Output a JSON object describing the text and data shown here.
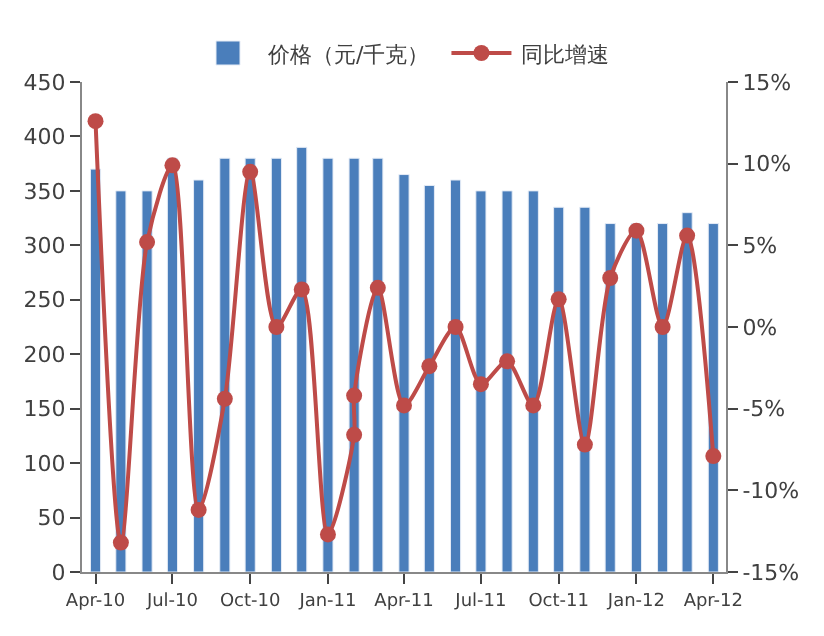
{
  "chart_data": {
    "type": "bar",
    "x": [
      "2010-04",
      "2010-05",
      "2010-06",
      "2010-07",
      "2010-08",
      "2010-09",
      "2010-10",
      "2010-11",
      "2010-12",
      "2011-01",
      "2011-02",
      "2011-03",
      "2011-04",
      "2011-05",
      "2011-06",
      "2011-07",
      "2011-08",
      "2011-09",
      "2011-10",
      "2011-11",
      "2011-12",
      "2012-01",
      "2012-02",
      "2012-03",
      "2012-04"
    ],
    "series": [
      {
        "name": "价格（元/千克）",
        "color": "#4a7ebb",
        "values": [
          370,
          350,
          350,
          380,
          360,
          380,
          380,
          380,
          390,
          380,
          380,
          380,
          365,
          355,
          360,
          350,
          350,
          350,
          335,
          335,
          320,
          320,
          320,
          330,
          320
        ]
      },
      {
        "name": "同比增速",
        "type": "line",
        "axis": "y2",
        "color": "#be4b48",
        "marker": "circle",
        "x": [
          "2010-04",
          "2010-05",
          "2010-06",
          "2010-07",
          "2010-08",
          "2010-09",
          "2010-10",
          "2010-11",
          "2010-12",
          "2011-01",
          "2011-02",
          "2011-02",
          "2011-03",
          "2011-04",
          "2011-05",
          "2011-06",
          "2011-07",
          "2011-08",
          "2011-09",
          "2011-10",
          "2011-11",
          "2011-12",
          "2012-01",
          "2012-02",
          "2012-03",
          "2012-04"
        ],
        "values": [
          12.6,
          -13.2,
          5.2,
          9.9,
          -11.2,
          -4.4,
          9.5,
          0.0,
          2.3,
          -12.7,
          -6.6,
          -4.2,
          2.4,
          -4.8,
          -2.4,
          0.0,
          -3.5,
          -2.1,
          -4.8,
          1.7,
          -7.2,
          3.0,
          5.9,
          0.0,
          5.6,
          -7.9
        ]
      }
    ],
    "xlim": [
      "2010-03-16",
      "2012-04-16"
    ],
    "xticks": [
      {
        "value": "2010-04",
        "label": "Apr-10"
      },
      {
        "value": "2010-07",
        "label": "Jul-10"
      },
      {
        "value": "2010-10",
        "label": "Oct-10"
      },
      {
        "value": "2011-01",
        "label": "Jan-11"
      },
      {
        "value": "2011-04",
        "label": "Apr-11"
      },
      {
        "value": "2011-07",
        "label": "Jul-11"
      },
      {
        "value": "2011-10",
        "label": "Oct-11"
      },
      {
        "value": "2012-01",
        "label": "Jan-12"
      },
      {
        "value": "2012-04",
        "label": "Apr-12"
      }
    ],
    "ylim": [
      0,
      450
    ],
    "yticks": [
      0,
      50,
      100,
      150,
      200,
      250,
      300,
      350,
      400,
      450
    ],
    "y2lim": [
      -15,
      15
    ],
    "y2ticks": [
      {
        "value": -15,
        "label": "-15%"
      },
      {
        "value": -10,
        "label": "-10%"
      },
      {
        "value": -5,
        "label": "-5%"
      },
      {
        "value": 0,
        "label": "0%"
      },
      {
        "value": 5,
        "label": "5%"
      },
      {
        "value": 10,
        "label": "10%"
      },
      {
        "value": 15,
        "label": "15%"
      }
    ],
    "legend": "top"
  }
}
